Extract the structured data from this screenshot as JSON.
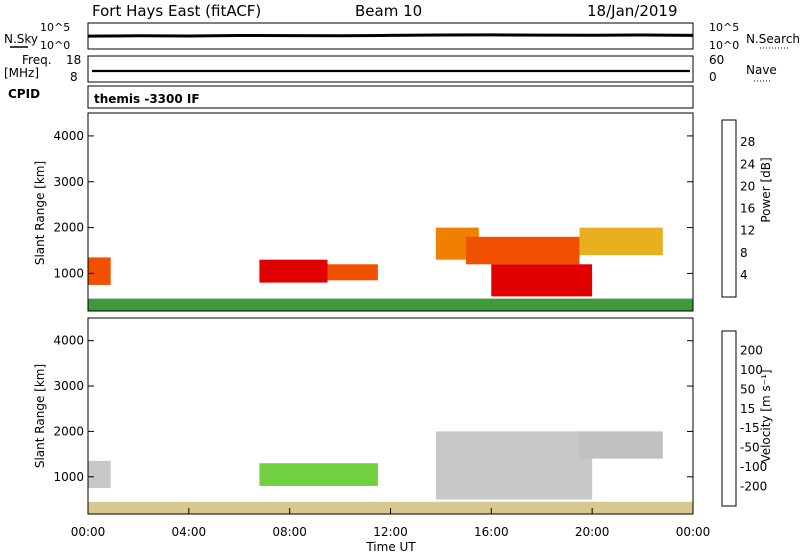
{
  "header": {
    "station": "Fort Hays East (fitACF)",
    "beam": "Beam 10",
    "date": "18/Jan/2019"
  },
  "noise_panel": {
    "left_label": "N.Sky",
    "left_top_tick": "10^5",
    "left_bottom_tick": "10^0",
    "right_label": "N.Search",
    "right_top_tick": "10^5",
    "right_bottom_tick": "10^0"
  },
  "freq_panel": {
    "left_label_1": "Freq.",
    "left_label_2": "[MHz]",
    "left_top_tick": "18",
    "left_bottom_tick": "8",
    "right_label": "Nave",
    "right_top_tick": "60",
    "right_bottom_tick": "0"
  },
  "cpid_panel": {
    "label": "CPID",
    "mode_text": "themis -3300 IF"
  },
  "power_panel": {
    "ylabel": "Slant Range [km]",
    "colorbar_label": "Power [dB]"
  },
  "velocity_panel": {
    "ylabel": "Slant Range [km]",
    "colorbar_label": "Velocity [m s⁻¹]"
  },
  "time_axis": {
    "xlabel": "Time UT",
    "ticks": [
      "00:00",
      "04:00",
      "08:00",
      "12:00",
      "16:00",
      "20:00",
      "00:00"
    ]
  },
  "colors": {
    "power_scale": [
      "#0000ee",
      "#2a4fb0",
      "#3a7a3a",
      "#3f9a3f",
      "#5fbf3f",
      "#e8b020",
      "#f08000",
      "#f05000",
      "#e00000"
    ],
    "velocity_scale": [
      "#e00000",
      "#f06000",
      "#f0a000",
      "#d8c890",
      "#c8c8c8",
      "#c0c0c0",
      "#70d040",
      "#3a9a3a",
      "#2050a0",
      "#1030b0"
    ]
  },
  "chart_data": [
    {
      "type": "line",
      "title": "N.Sky / N.Search",
      "x_range_hours": [
        0,
        24
      ],
      "y_scale": "log",
      "ylim": [
        1,
        100000
      ],
      "series": [
        {
          "name": "N.Sky",
          "x": [
            0,
            2,
            4,
            6,
            8,
            10,
            12,
            14,
            16,
            18,
            20,
            22,
            24
          ],
          "y": [
            300,
            350,
            320,
            400,
            380,
            360,
            420,
            500,
            520,
            480,
            450,
            500,
            420
          ]
        }
      ]
    },
    {
      "type": "line",
      "title": "Freq.",
      "x_range_hours": [
        0,
        24
      ],
      "ylim": [
        8,
        18
      ],
      "series": [
        {
          "name": "Freq.",
          "x": [
            0,
            24
          ],
          "y": [
            10.5,
            10.5
          ]
        }
      ]
    },
    {
      "type": "heatmap",
      "quantity": "Power [dB]",
      "x_range_hours": [
        0,
        24
      ],
      "xticks": [
        "00:00",
        "04:00",
        "08:00",
        "12:00",
        "16:00",
        "20:00",
        "00:00"
      ],
      "ylabel": "Slant Range [km]",
      "ylim": [
        180,
        4500
      ],
      "yticks": [
        1000,
        2000,
        3000,
        4000
      ],
      "colorbar_ticks": [
        4,
        8,
        12,
        16,
        20,
        24,
        28
      ],
      "colorbar_range": [
        0,
        30
      ],
      "regions": [
        {
          "t0": 0.0,
          "t1": 0.9,
          "r0": 750,
          "r1": 1350,
          "value": 26
        },
        {
          "t0": 6.8,
          "t1": 9.5,
          "r0": 800,
          "r1": 1300,
          "value": 27
        },
        {
          "t0": 9.5,
          "t1": 11.5,
          "r0": 850,
          "r1": 1200,
          "value": 24
        },
        {
          "t0": 13.8,
          "t1": 15.5,
          "r0": 1300,
          "r1": 2000,
          "value": 22
        },
        {
          "t0": 15.0,
          "t1": 19.5,
          "r0": 1200,
          "r1": 1800,
          "value": 24
        },
        {
          "t0": 16.0,
          "t1": 20.0,
          "r0": 500,
          "r1": 1200,
          "value": 27
        },
        {
          "t0": 19.5,
          "t1": 22.8,
          "r0": 1400,
          "r1": 2000,
          "value": 18
        },
        {
          "t0": 0.0,
          "t1": 24.0,
          "r0": 180,
          "r1": 450,
          "value": 10
        }
      ]
    },
    {
      "type": "heatmap",
      "quantity": "Velocity [m s⁻¹]",
      "x_range_hours": [
        0,
        24
      ],
      "xticks": [
        "00:00",
        "04:00",
        "08:00",
        "12:00",
        "16:00",
        "20:00",
        "00:00"
      ],
      "ylabel": "Slant Range [km]",
      "ylim": [
        180,
        4500
      ],
      "yticks": [
        1000,
        2000,
        3000,
        4000
      ],
      "colorbar_ticks": [
        200,
        100,
        50,
        15,
        -15,
        -50,
        -100,
        -200
      ],
      "regions": [
        {
          "t0": 0.0,
          "t1": 0.9,
          "r0": 750,
          "r1": 1350,
          "value": 0
        },
        {
          "t0": 6.8,
          "t1": 11.5,
          "r0": 800,
          "r1": 1300,
          "value": 30
        },
        {
          "t0": 13.8,
          "t1": 20.0,
          "r0": 500,
          "r1": 2000,
          "value": 0
        },
        {
          "t0": 19.5,
          "t1": 22.8,
          "r0": 1400,
          "r1": 2000,
          "value": 5
        },
        {
          "t0": 0.0,
          "t1": 24.0,
          "r0": 180,
          "r1": 450,
          "value": -40
        }
      ]
    }
  ]
}
